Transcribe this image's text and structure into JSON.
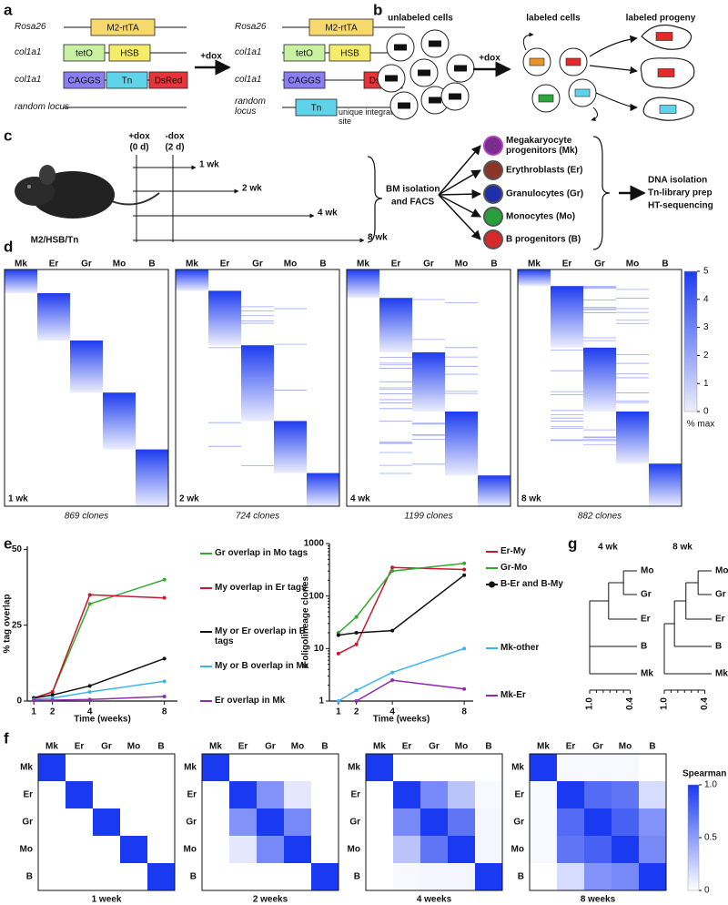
{
  "a": {
    "label": "a",
    "before": [
      {
        "locus": "Rosa26",
        "parts": [
          {
            "name": "M2-rtTA",
            "color": "#f7d86c"
          }
        ]
      },
      {
        "locus": "col1a1",
        "parts": [
          {
            "name": "tetO",
            "color": "#c8f2a2"
          },
          {
            "name": "HSB",
            "color": "#f6ec6c"
          }
        ]
      },
      {
        "locus": "col1a1",
        "parts": [
          {
            "name": "CAGGS",
            "color": "#8a7ef2"
          },
          {
            "name": "Tn",
            "color": "#5fd3ea"
          },
          {
            "name": "DsRed",
            "color": "#e8333a"
          }
        ]
      },
      {
        "locus": "random locus",
        "parts": []
      }
    ],
    "treatment": "+dox",
    "after": [
      {
        "locus": "Rosa26",
        "parts": [
          {
            "name": "M2-rtTA",
            "color": "#f7d86c"
          }
        ]
      },
      {
        "locus": "col1a1",
        "parts": [
          {
            "name": "tetO",
            "color": "#c8f2a2"
          },
          {
            "name": "HSB",
            "color": "#f6ec6c"
          }
        ]
      },
      {
        "locus": "col1a1",
        "parts": [
          {
            "name": "CAGGS",
            "color": "#8a7ef2"
          },
          {
            "name": "DsRed",
            "color": "#e8333a"
          }
        ]
      },
      {
        "locus": "random locus",
        "parts": [
          {
            "name": "Tn",
            "color": "#5fd3ea"
          }
        ]
      }
    ],
    "note": "unique integration site"
  },
  "b": {
    "label": "b",
    "unlabeled": "unlabeled cells",
    "treatment": "+dox",
    "labeled": "labeled cells",
    "progeny": "labeled progeny"
  },
  "c": {
    "label": "c",
    "strain": "M2/HSB/Tn",
    "dox_on": "+dox",
    "dox_on_time": "(0 d)",
    "dox_off": "-dox",
    "dox_off_time": "(2 d)",
    "timepoints": [
      "1 wk",
      "2 wk",
      "4 wk",
      "8 wk"
    ],
    "sorting": [
      "BM isolation",
      "and FACS"
    ],
    "populations": [
      {
        "name": "Megakaryocyte progenitors (Mk)",
        "color": "#7a2d8c"
      },
      {
        "name": "Erythroblasts (Er)",
        "color": "#8a3526"
      },
      {
        "name": "Granulocytes (Gr)",
        "color": "#1f2fa8"
      },
      {
        "name": "Monocytes (Mo)",
        "color": "#27a03c"
      },
      {
        "name": "B progenitors (B)",
        "color": "#d42a2a"
      }
    ],
    "steps": [
      "DNA isolation",
      "Tn-library prep",
      "HT-sequencing"
    ]
  },
  "d": {
    "label": "d",
    "lineages": [
      "Mk",
      "Er",
      "Gr",
      "Mo",
      "B"
    ],
    "panels": [
      {
        "time": "1 wk",
        "clones": "869 clones"
      },
      {
        "time": "2 wk",
        "clones": "724 clones"
      },
      {
        "time": "4 wk",
        "clones": "1199 clones"
      },
      {
        "time": "8 wk",
        "clones": "882 clones"
      }
    ],
    "colorbar": {
      "label": "% max",
      "lim": [
        0,
        5
      ],
      "ticks": [
        0,
        1,
        2,
        3,
        4,
        5
      ],
      "colors": [
        "#eceefd",
        "#1d3cf0"
      ]
    }
  },
  "e": {
    "label": "e"
  },
  "chart_data": [
    {
      "type": "line",
      "ylabel": "% tag overlap",
      "xlabel": "Time (weeks)",
      "x": [
        1,
        2,
        4,
        8
      ],
      "xlim": [
        0.65,
        8.7
      ],
      "xticks": [
        1,
        2,
        4,
        8
      ],
      "ylim": [
        0,
        51
      ],
      "yticks": [
        0,
        25,
        50
      ],
      "series": [
        {
          "name": "Gr overlap in Mo tags",
          "color": "#2eaa2e",
          "values": [
            1,
            3,
            32,
            40
          ]
        },
        {
          "name": "My overlap in Er tags",
          "color": "#c8182e",
          "values": [
            1,
            3,
            35,
            34
          ]
        },
        {
          "name": "My or Er overlap in B tags",
          "color": "#111111",
          "values": [
            1,
            2,
            5,
            14
          ]
        },
        {
          "name": "My or B overlap in Mk",
          "color": "#3fb4ec",
          "values": [
            0.5,
            1,
            3,
            6.5
          ]
        },
        {
          "name": "Er overlap in Mk",
          "color": "#8e2cb0",
          "values": [
            0.2,
            0.3,
            0.5,
            1.5
          ]
        }
      ]
    },
    {
      "type": "line",
      "log_scale": true,
      "ylabel": "# oligolineage clones",
      "xlabel": "Time (weeks)",
      "x": [
        1,
        2,
        4,
        8
      ],
      "xlim": [
        0.5,
        8.5
      ],
      "xticks": [
        1,
        2,
        4,
        8
      ],
      "ylim": [
        1,
        1000
      ],
      "yticks": [
        1,
        10,
        100,
        1000
      ],
      "series": [
        {
          "name": "Er-My",
          "color": "#c8182e",
          "values": [
            8,
            12,
            350,
            320
          ]
        },
        {
          "name": "Gr-Mo",
          "color": "#2eaa2e",
          "values": [
            20,
            40,
            300,
            420
          ]
        },
        {
          "name": "B-Er and B-My",
          "color": "#111111",
          "marker": "circle",
          "values": [
            18,
            20,
            22,
            250
          ]
        },
        {
          "name": "Mk-other",
          "color": "#3fb4ec",
          "values": [
            1,
            1.6,
            3.5,
            10
          ]
        },
        {
          "name": "Mk-Er",
          "color": "#8e2cb0",
          "values": [
            null,
            1,
            2.5,
            1.7
          ]
        }
      ]
    }
  ],
  "f": {
    "label": "f",
    "lineages": [
      "Mk",
      "Er",
      "Gr",
      "Mo",
      "B"
    ],
    "panels": [
      {
        "time": "1 week",
        "values": [
          [
            1,
            0,
            0,
            0,
            0
          ],
          [
            0,
            1,
            0,
            0,
            0
          ],
          [
            0,
            0,
            1,
            0,
            0
          ],
          [
            0,
            0,
            0,
            1,
            0
          ],
          [
            0,
            0,
            0,
            0,
            1
          ]
        ]
      },
      {
        "time": "2 weeks",
        "values": [
          [
            1,
            0,
            0,
            0,
            0
          ],
          [
            0,
            1,
            0.55,
            0.12,
            0
          ],
          [
            0,
            0.55,
            1,
            0.6,
            0
          ],
          [
            0,
            0.12,
            0.6,
            1,
            0
          ],
          [
            0,
            0,
            0,
            0,
            1
          ]
        ]
      },
      {
        "time": "4 weeks",
        "values": [
          [
            1,
            0,
            0,
            0,
            0
          ],
          [
            0,
            1,
            0.6,
            0.3,
            0.03
          ],
          [
            0,
            0.6,
            1,
            0.7,
            0.05
          ],
          [
            0,
            0.3,
            0.7,
            1,
            0.05
          ],
          [
            0,
            0.03,
            0.05,
            0.05,
            1
          ]
        ]
      },
      {
        "time": "8 weeks",
        "values": [
          [
            1,
            0.03,
            0.03,
            0.03,
            0
          ],
          [
            0.03,
            1,
            0.75,
            0.7,
            0.18
          ],
          [
            0.03,
            0.75,
            1,
            0.8,
            0.55
          ],
          [
            0.03,
            0.7,
            0.8,
            1,
            0.6
          ],
          [
            0,
            0.18,
            0.55,
            0.6,
            1
          ]
        ]
      }
    ],
    "colorbar": {
      "label": "Spearman r",
      "lim": [
        0,
        1
      ],
      "ticks": [
        0,
        0.5,
        {
          "value": 1,
          "label": "1.0"
        }
      ],
      "colors": [
        "#ffffff",
        "#1a3af2"
      ]
    }
  },
  "g": {
    "label": "g",
    "leaves": [
      {
        "name": "Mo",
        "color": "#27a83a"
      },
      {
        "name": "Gr",
        "color": "#4a5ae6"
      },
      {
        "name": "Er",
        "color": "#d0651e"
      },
      {
        "name": "B",
        "color": "#ee3344"
      },
      {
        "name": "Mk",
        "color": "#a040e0"
      }
    ],
    "trees": [
      {
        "time": "4 wk",
        "heights": [
          0.5,
          0.72,
          1,
          1
        ]
      },
      {
        "time": "8 wk",
        "heights": [
          0.5,
          0.68,
          0.85,
          1
        ]
      }
    ],
    "xlim": [
      1,
      0.3
    ],
    "xticks": [
      {
        "value": 1,
        "label": "1.0"
      },
      {
        "value": 0.4,
        "label": "0.4"
      }
    ]
  }
}
